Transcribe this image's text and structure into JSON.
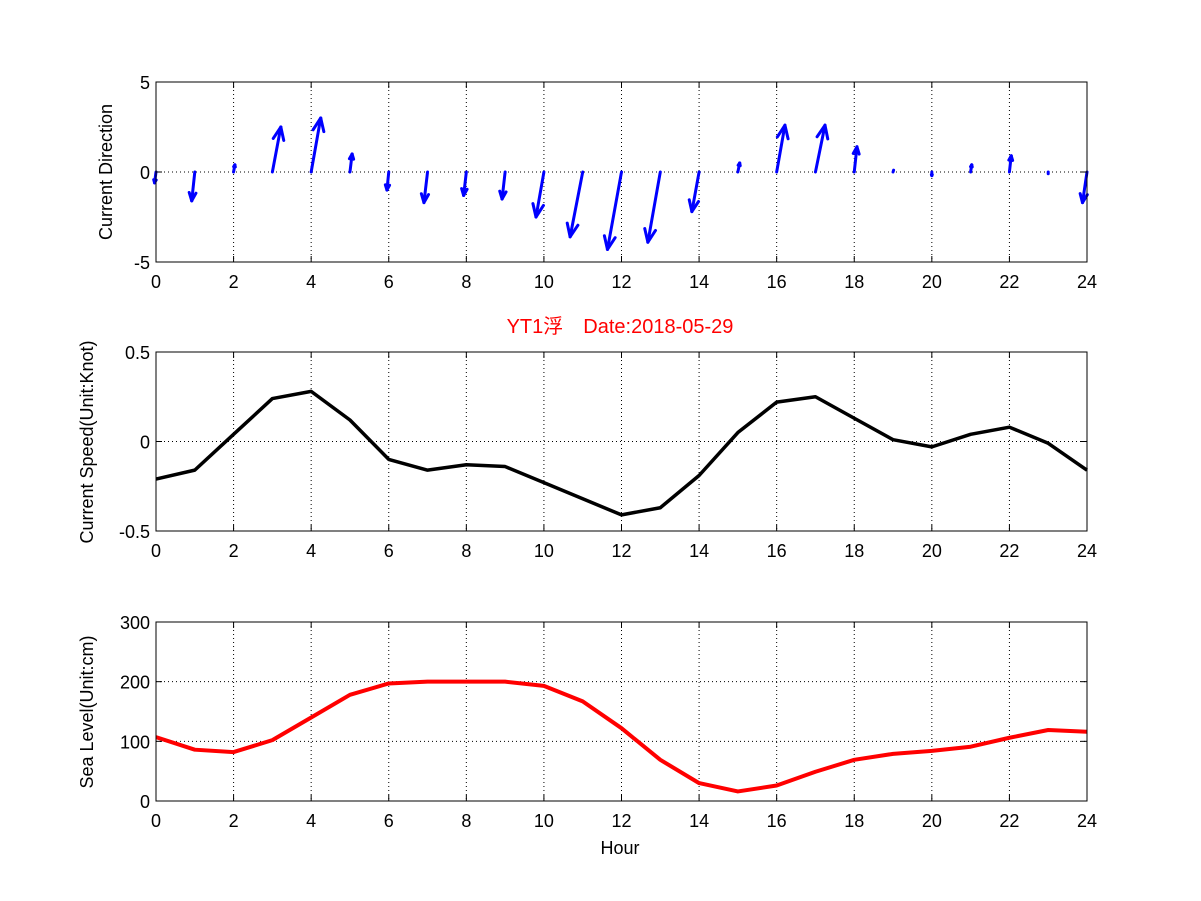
{
  "chart_data": [
    {
      "type": "quiver",
      "ylabel": "Current Direction",
      "xlim": [
        0,
        24
      ],
      "ylim": [
        -5,
        5
      ],
      "xticks": [
        "0",
        "2",
        "4",
        "6",
        "8",
        "10",
        "12",
        "14",
        "16",
        "18",
        "20",
        "22",
        "24"
      ],
      "yticks": [
        "-5",
        "0",
        "5"
      ],
      "grid": true,
      "color": "#0000ff",
      "x": [
        0,
        1,
        2,
        3,
        4,
        5,
        6,
        7,
        8,
        9,
        10,
        11,
        12,
        13,
        14,
        15,
        16,
        17,
        18,
        19,
        20,
        21,
        22,
        23,
        24
      ],
      "u": [
        -0.08,
        -0.17,
        0.07,
        0.47,
        0.53,
        0.12,
        -0.1,
        -0.2,
        -0.15,
        -0.17,
        -0.44,
        -0.7,
        -0.78,
        -0.69,
        -0.4,
        0.1,
        0.46,
        0.53,
        0.15,
        0.03,
        0.0,
        0.06,
        0.1,
        0.0,
        -0.25
      ],
      "v": [
        -0.6,
        -1.6,
        0.4,
        2.5,
        3.0,
        1.0,
        -1.0,
        -1.7,
        -1.3,
        -1.5,
        -2.5,
        -3.6,
        -4.3,
        -3.9,
        -2.2,
        0.5,
        2.6,
        2.6,
        1.4,
        0.1,
        -0.2,
        0.4,
        0.9,
        -0.1,
        -1.7
      ]
    },
    {
      "type": "line",
      "title": "YT1浮　Date:2018-05-29",
      "title_color": "#ff0000",
      "ylabel": "Current Speed(Unit:Knot)",
      "xlim": [
        0,
        24
      ],
      "ylim": [
        -0.5,
        0.5
      ],
      "xticks": [
        "0",
        "2",
        "4",
        "6",
        "8",
        "10",
        "12",
        "14",
        "16",
        "18",
        "20",
        "22",
        "24"
      ],
      "yticks": [
        "-0.5",
        "0",
        "0.5"
      ],
      "grid": true,
      "color": "#000000",
      "x": [
        0,
        1,
        2,
        3,
        4,
        5,
        6,
        7,
        8,
        9,
        10,
        11,
        12,
        13,
        14,
        15,
        16,
        17,
        18,
        19,
        20,
        21,
        22,
        23,
        24
      ],
      "y": [
        -0.21,
        -0.16,
        0.04,
        0.24,
        0.28,
        0.12,
        -0.1,
        -0.16,
        -0.13,
        -0.14,
        -0.23,
        -0.32,
        -0.41,
        -0.37,
        -0.19,
        0.05,
        0.22,
        0.25,
        0.13,
        0.01,
        -0.03,
        0.04,
        0.08,
        -0.01,
        -0.16
      ]
    },
    {
      "type": "line",
      "ylabel": "Sea Level(Unit:cm)",
      "xlabel": "Hour",
      "xlim": [
        0,
        24
      ],
      "ylim": [
        0,
        300
      ],
      "xticks": [
        "0",
        "2",
        "4",
        "6",
        "8",
        "10",
        "12",
        "14",
        "16",
        "18",
        "20",
        "22",
        "24"
      ],
      "yticks": [
        "0",
        "100",
        "200",
        "300"
      ],
      "grid": true,
      "color": "#ff0000",
      "x": [
        0,
        1,
        2,
        3,
        4,
        5,
        6,
        7,
        8,
        9,
        10,
        11,
        12,
        13,
        14,
        15,
        16,
        17,
        18,
        19,
        20,
        21,
        22,
        23,
        24
      ],
      "y": [
        107,
        86,
        82,
        102,
        140,
        178,
        197,
        200,
        200,
        200,
        193,
        167,
        122,
        69,
        30,
        16,
        26,
        49,
        69,
        79,
        84,
        91,
        106,
        119,
        116
      ]
    }
  ]
}
